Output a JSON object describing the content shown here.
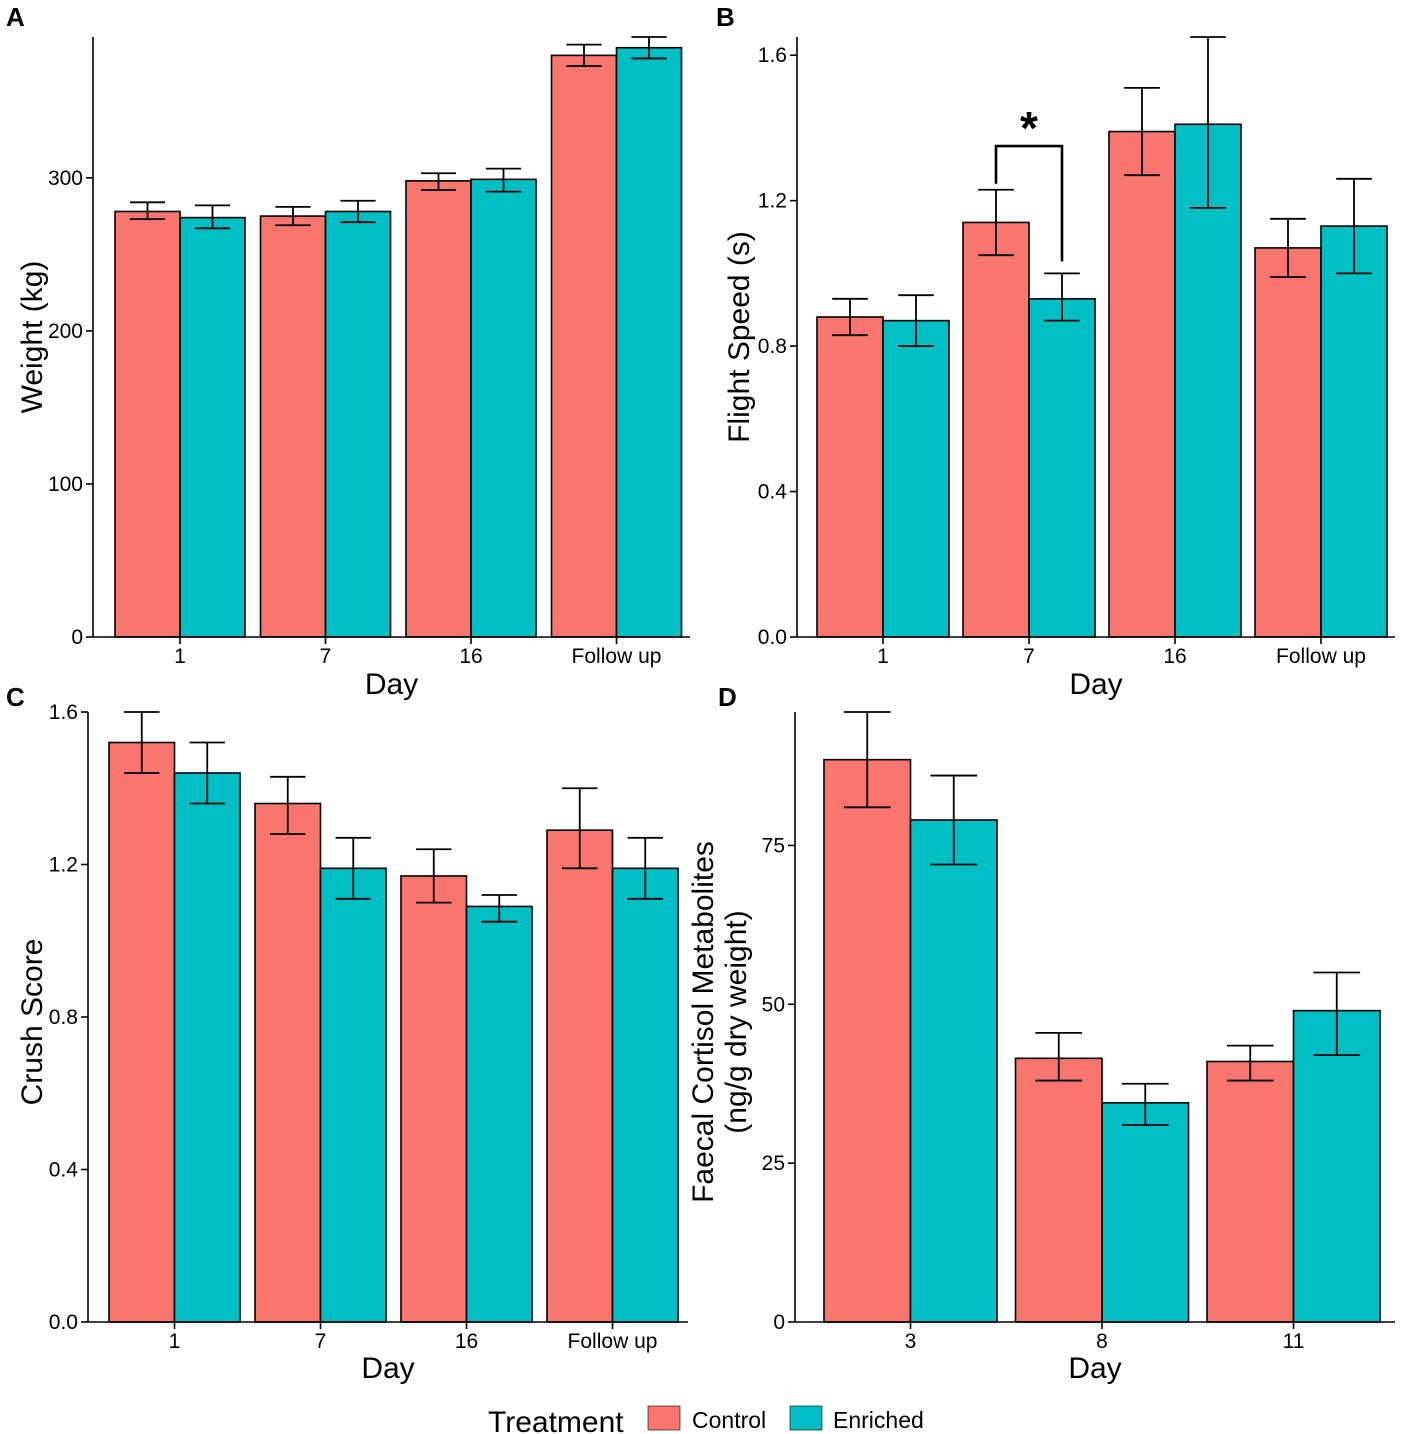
{
  "colors": {
    "control": "#F8766D",
    "enriched": "#00BFC4",
    "axis": "#000000"
  },
  "legend": {
    "title": "Treatment",
    "items": [
      "Control",
      "Enriched"
    ]
  },
  "chart_data": [
    {
      "panel_label": "A",
      "type": "bar",
      "xlabel": "Day",
      "ylabel": "Weight (kg)",
      "ylim": [
        0,
        392
      ],
      "yticks": [
        0,
        100,
        200,
        300
      ],
      "ytick_labels": [
        "0",
        "100",
        "200",
        "300"
      ],
      "categories": [
        "1",
        "7",
        "16",
        "Follow up"
      ],
      "series": [
        {
          "name": "Control",
          "values": [
            278,
            275,
            298,
            380
          ],
          "err_low": [
            273,
            269,
            292,
            373
          ],
          "err_high": [
            284,
            281,
            303,
            387
          ]
        },
        {
          "name": "Enriched",
          "values": [
            274,
            278,
            299,
            385
          ],
          "err_low": [
            267,
            271,
            291,
            378
          ],
          "err_high": [
            282,
            285,
            306,
            392
          ]
        }
      ]
    },
    {
      "panel_label": "B",
      "type": "bar",
      "xlabel": "Day",
      "ylabel": "Flight Speed (s)",
      "ylim": [
        0,
        1.65
      ],
      "yticks": [
        0,
        0.4,
        0.8,
        1.2,
        1.6
      ],
      "ytick_labels": [
        "0.0",
        "0.4",
        "0.8",
        "1.2",
        "1.6"
      ],
      "categories": [
        "1",
        "7",
        "16",
        "Follow up"
      ],
      "series": [
        {
          "name": "Control",
          "values": [
            0.88,
            1.14,
            1.39,
            1.07
          ],
          "err_low": [
            0.83,
            1.05,
            1.27,
            0.99
          ],
          "err_high": [
            0.93,
            1.23,
            1.51,
            1.15
          ]
        },
        {
          "name": "Enriched",
          "values": [
            0.87,
            0.93,
            1.41,
            1.13
          ],
          "err_low": [
            0.8,
            0.87,
            1.18,
            1.0
          ],
          "err_high": [
            0.94,
            1.0,
            1.65,
            1.26
          ]
        }
      ],
      "annotation": {
        "text": "*",
        "category_index": 1,
        "y_bracket": 1.35
      }
    },
    {
      "panel_label": "C",
      "type": "bar",
      "xlabel": "Day",
      "ylabel": "Crush Score",
      "ylim": [
        0,
        1.6
      ],
      "yticks": [
        0,
        0.4,
        0.8,
        1.2,
        1.6
      ],
      "ytick_labels": [
        "0.0",
        "0.4",
        "0.8",
        "1.2",
        "1.6"
      ],
      "categories": [
        "1",
        "7",
        "16",
        "Follow up"
      ],
      "series": [
        {
          "name": "Control",
          "values": [
            1.52,
            1.36,
            1.17,
            1.29
          ],
          "err_low": [
            1.44,
            1.28,
            1.1,
            1.19
          ],
          "err_high": [
            1.6,
            1.43,
            1.24,
            1.4
          ]
        },
        {
          "name": "Enriched",
          "values": [
            1.44,
            1.19,
            1.09,
            1.19
          ],
          "err_low": [
            1.36,
            1.11,
            1.05,
            1.11
          ],
          "err_high": [
            1.52,
            1.27,
            1.12,
            1.27
          ]
        }
      ]
    },
    {
      "panel_label": "D",
      "type": "bar",
      "xlabel": "Day",
      "ylabel_lines": [
        "Faecal Cortisol Metabolites",
        "(ng/g dry weight)"
      ],
      "ylim": [
        0,
        96
      ],
      "yticks": [
        0,
        25,
        50,
        75
      ],
      "ytick_labels": [
        "0",
        "25",
        "50",
        "75"
      ],
      "categories": [
        "3",
        "8",
        "11"
      ],
      "series": [
        {
          "name": "Control",
          "values": [
            88.5,
            41.5,
            41.0
          ],
          "err_low": [
            81.0,
            38.0,
            38.0
          ],
          "err_high": [
            96.0,
            45.5,
            43.5
          ]
        },
        {
          "name": "Enriched",
          "values": [
            79.0,
            34.5,
            49.0
          ],
          "err_low": [
            72.0,
            31.0,
            42.0
          ],
          "err_high": [
            86.0,
            37.5,
            55.0
          ]
        }
      ]
    }
  ]
}
